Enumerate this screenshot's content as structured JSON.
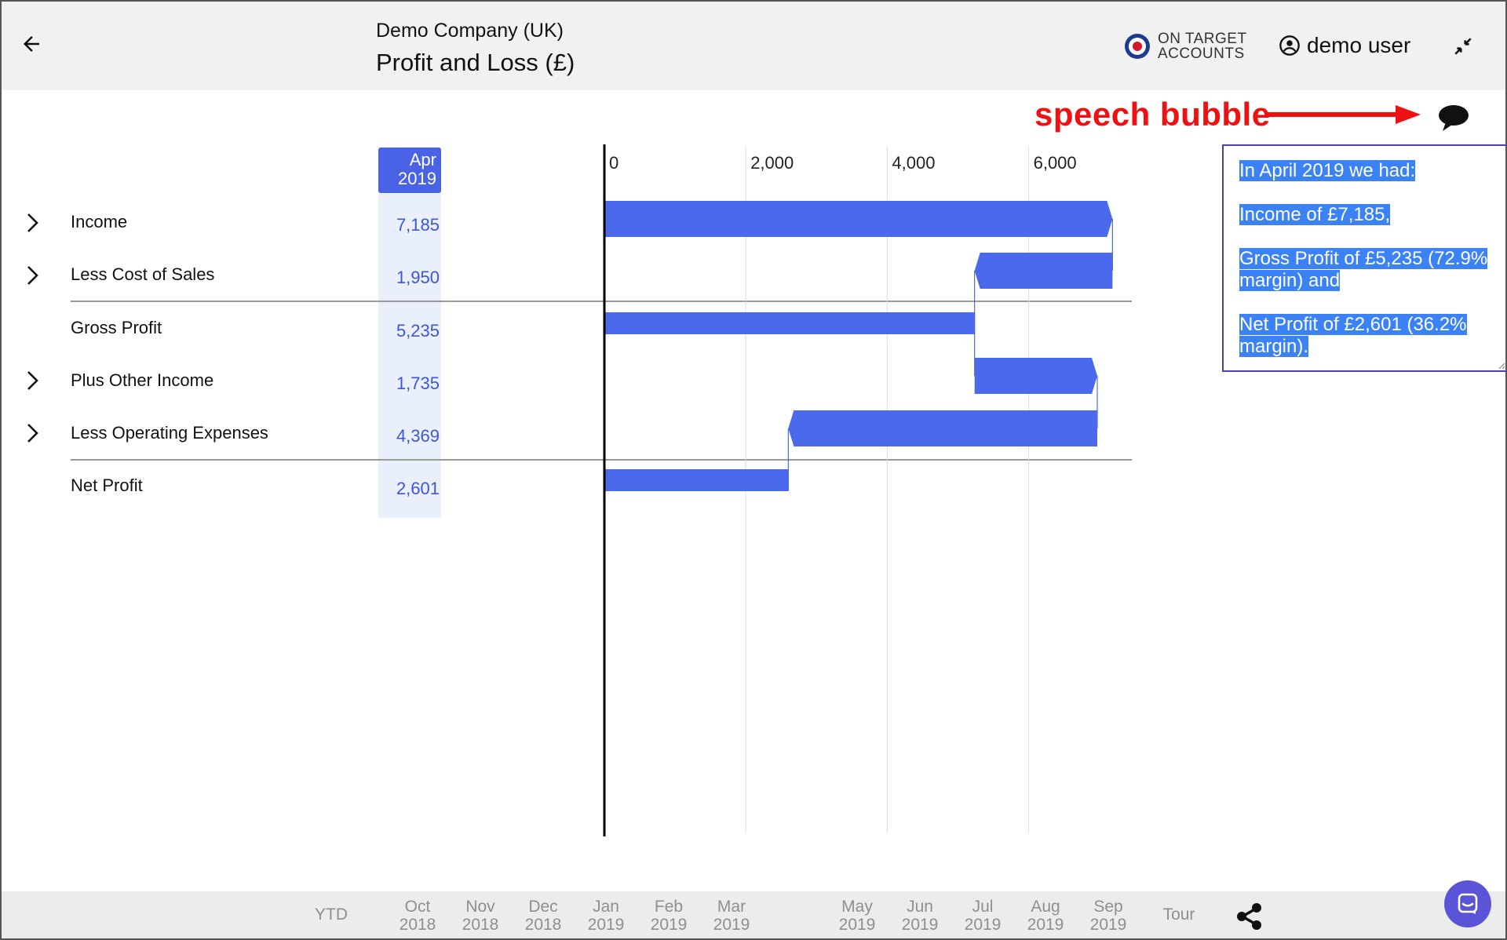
{
  "header": {
    "company": "Demo Company (UK)",
    "title": "Profit and Loss (£)",
    "brand_line1": "ON TARGET",
    "brand_line2": "ACCOUNTS",
    "user": "demo user"
  },
  "annotation": {
    "label": "speech bubble",
    "color": "#ee1111"
  },
  "speech": {
    "lines": [
      "In April 2019 we had:",
      "Income of £7,185,",
      "Gross Profit of £5,235 (72.9% margin) and",
      "Net Profit of £2,601 (36.2% margin)."
    ]
  },
  "column": {
    "month": "Apr",
    "year": "2019"
  },
  "rows": [
    {
      "label": "Income",
      "value": "7,185",
      "expandable": true
    },
    {
      "label": "Less Cost of Sales",
      "value": "1,950",
      "expandable": true
    },
    {
      "label": "Gross Profit",
      "value": "5,235",
      "expandable": false
    },
    {
      "label": "Plus Other Income",
      "value": "1,735",
      "expandable": true
    },
    {
      "label": "Less Operating Expenses",
      "value": "4,369",
      "expandable": true
    },
    {
      "label": "Net Profit",
      "value": "2,601",
      "expandable": false
    }
  ],
  "chart_data": {
    "type": "bar",
    "subtype": "waterfall",
    "orientation": "horizontal",
    "color": "#4a69eb",
    "xlim": [
      0,
      7000
    ],
    "ticks": [
      0,
      2000,
      4000,
      6000
    ],
    "tick_labels": [
      "0",
      "2,000",
      "4,000",
      "6,000"
    ],
    "categories": [
      "Income",
      "Less Cost of Sales",
      "Gross Profit",
      "Plus Other Income",
      "Less Operating Expenses",
      "Net Profit"
    ],
    "bars": [
      {
        "start": 0,
        "end": 7185,
        "kind": "increase"
      },
      {
        "start": 5235,
        "end": 7185,
        "kind": "decrease"
      },
      {
        "start": 0,
        "end": 5235,
        "kind": "total"
      },
      {
        "start": 5235,
        "end": 6970,
        "kind": "increase"
      },
      {
        "start": 2601,
        "end": 6970,
        "kind": "decrease"
      },
      {
        "start": 0,
        "end": 2601,
        "kind": "total"
      }
    ]
  },
  "footer": {
    "periods": [
      {
        "month": "YTD",
        "year": ""
      },
      {
        "month": "Oct",
        "year": "2018"
      },
      {
        "month": "Nov",
        "year": "2018"
      },
      {
        "month": "Dec",
        "year": "2018"
      },
      {
        "month": "Jan",
        "year": "2019"
      },
      {
        "month": "Feb",
        "year": "2019"
      },
      {
        "month": "Mar",
        "year": "2019"
      },
      {
        "month": "May",
        "year": "2019"
      },
      {
        "month": "Jun",
        "year": "2019"
      },
      {
        "month": "Jul",
        "year": "2019"
      },
      {
        "month": "Aug",
        "year": "2019"
      },
      {
        "month": "Sep",
        "year": "2019"
      },
      {
        "month": "Tour",
        "year": ""
      }
    ]
  },
  "icons": {
    "back": "arrow-left-icon",
    "user": "account-circle-icon",
    "collapse": "collapse-arrows-icon",
    "speech": "speech-bubble-icon",
    "expand": "chevron-right-icon",
    "share": "share-icon",
    "chat": "chat-icon"
  }
}
